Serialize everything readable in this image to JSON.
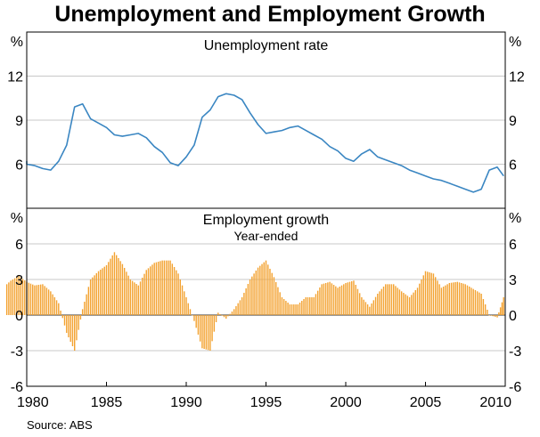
{
  "title": "Unemployment and Employment Growth",
  "source": "Source: ABS",
  "colors": {
    "unemployment_line": "#3a86c2",
    "employment_bars": "#f3a230",
    "grid": "#c8c8c8",
    "frame": "#000000"
  },
  "chart_data": [
    {
      "type": "line",
      "title": "Unemployment rate",
      "ylabel_left": "%",
      "ylabel_right": "%",
      "ylim": [
        3,
        15
      ],
      "yticks": [
        6,
        9,
        12
      ],
      "xlim": [
        1980,
        2010
      ],
      "grid": true,
      "series": [
        {
          "x": [
            1978.75,
            1979.0,
            1979.5,
            1980.0,
            1980.5,
            1981.0,
            1981.5,
            1982.0,
            1982.5,
            1983.0,
            1983.5,
            1984.0,
            1984.5,
            1985.0,
            1985.5,
            1986.0,
            1986.5,
            1987.0,
            1987.5,
            1988.0,
            1988.5,
            1989.0,
            1989.5,
            1990.0,
            1990.5,
            1991.0,
            1991.5,
            1992.0,
            1992.5,
            1993.0,
            1993.5,
            1994.0,
            1994.5,
            1995.0,
            1995.5,
            1996.0,
            1996.5,
            1997.0,
            1997.5,
            1998.0,
            1998.5,
            1999.0,
            1999.5,
            2000.0,
            2000.5,
            2001.0,
            2001.5,
            2002.0,
            2002.5,
            2003.0,
            2003.5,
            2004.0,
            2004.5,
            2005.0,
            2005.5,
            2006.0,
            2006.5,
            2007.0,
            2007.5,
            2008.0,
            2008.5,
            2009.0,
            2009.5,
            2009.9
          ],
          "values": [
            6.1,
            6.2,
            6.1,
            6.0,
            5.9,
            5.7,
            5.6,
            6.2,
            7.3,
            9.9,
            10.1,
            9.1,
            8.8,
            8.5,
            8.0,
            7.9,
            8.0,
            8.1,
            7.8,
            7.2,
            6.8,
            6.1,
            5.9,
            6.5,
            7.3,
            9.2,
            9.7,
            10.6,
            10.8,
            10.7,
            10.4,
            9.5,
            8.7,
            8.1,
            8.2,
            8.3,
            8.5,
            8.6,
            8.3,
            8.0,
            7.7,
            7.2,
            6.9,
            6.4,
            6.2,
            6.7,
            7.0,
            6.5,
            6.3,
            6.1,
            5.9,
            5.6,
            5.4,
            5.2,
            5.0,
            4.9,
            4.7,
            4.5,
            4.3,
            4.1,
            4.3,
            5.6,
            5.8,
            5.2
          ]
        }
      ]
    },
    {
      "type": "bar",
      "title": "Employment growth",
      "subtitle": "Year-ended",
      "ylabel_left": "%",
      "ylabel_right": "%",
      "ylim": [
        -6,
        9
      ],
      "yticks": [
        -6,
        -3,
        0,
        3,
        6
      ],
      "xlim": [
        1980,
        2010
      ],
      "xticks": [
        1980,
        1985,
        1990,
        1995,
        2000,
        2005,
        2010
      ],
      "grid": true,
      "series": [
        {
          "x": [
            1978.75,
            1979.0,
            1979.5,
            1980.0,
            1980.5,
            1981.0,
            1981.5,
            1982.0,
            1982.5,
            1983.0,
            1983.5,
            1984.0,
            1984.5,
            1985.0,
            1985.5,
            1986.0,
            1986.5,
            1987.0,
            1987.5,
            1988.0,
            1988.5,
            1989.0,
            1989.5,
            1990.0,
            1990.5,
            1991.0,
            1991.5,
            1992.0,
            1992.5,
            1993.0,
            1993.5,
            1994.0,
            1994.5,
            1995.0,
            1995.5,
            1996.0,
            1996.5,
            1997.0,
            1997.5,
            1998.0,
            1998.5,
            1999.0,
            1999.5,
            2000.0,
            2000.5,
            2001.0,
            2001.5,
            2002.0,
            2002.5,
            2003.0,
            2003.5,
            2004.0,
            2004.5,
            2005.0,
            2005.5,
            2006.0,
            2006.5,
            2007.0,
            2007.5,
            2008.0,
            2008.5,
            2009.0,
            2009.5,
            2009.9
          ],
          "values": [
            2.6,
            2.9,
            3.3,
            2.8,
            2.5,
            2.6,
            2.0,
            1.0,
            -1.5,
            -3.0,
            0.5,
            3.0,
            3.7,
            4.2,
            5.3,
            4.3,
            3.0,
            2.5,
            3.8,
            4.4,
            4.6,
            4.6,
            3.5,
            1.5,
            -0.5,
            -2.8,
            -3.0,
            0.2,
            -0.3,
            0.5,
            1.5,
            3.0,
            4.0,
            4.6,
            3.2,
            1.5,
            0.9,
            0.9,
            1.5,
            1.5,
            2.6,
            2.8,
            2.3,
            2.7,
            2.9,
            1.5,
            0.7,
            1.8,
            2.6,
            2.6,
            2.0,
            1.5,
            2.3,
            3.7,
            3.5,
            2.3,
            2.7,
            2.8,
            2.6,
            2.2,
            1.8,
            0.0,
            -0.2,
            1.5
          ]
        }
      ]
    }
  ]
}
